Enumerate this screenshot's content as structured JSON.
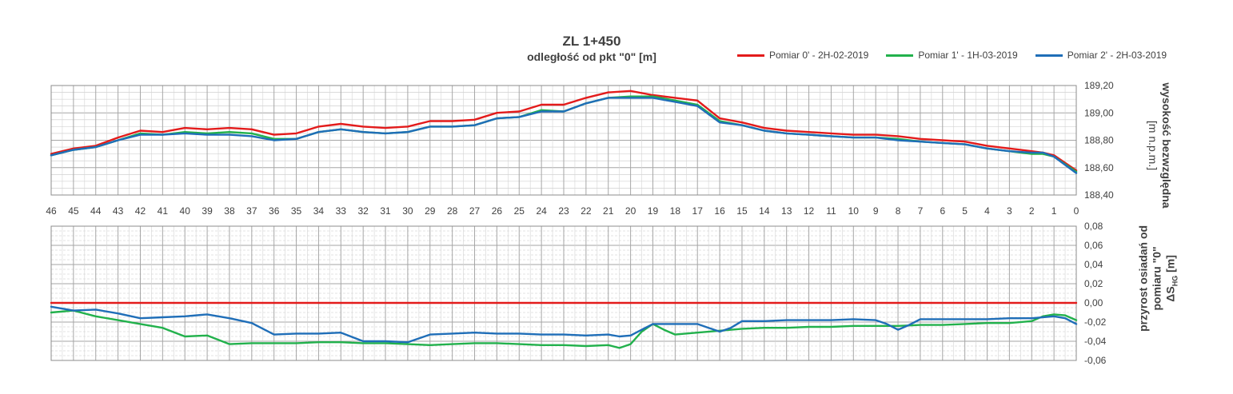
{
  "chart_data": [
    {
      "type": "line",
      "title": "ZL 1+450",
      "subtitle": "odległość od pkt \"0\" [m]",
      "ylabel_line1": "wysokość bezwzględna",
      "ylabel_line2": "[m n.p.m.]",
      "ylim": [
        188.4,
        189.2
      ],
      "yticks": [
        "189,20",
        "189,00",
        "188,80",
        "188,60",
        "188,40"
      ],
      "xlim": [
        46,
        0
      ],
      "x_ticks": [
        "46",
        "45",
        "44",
        "43",
        "42",
        "41",
        "40",
        "39",
        "38",
        "37",
        "36",
        "35",
        "34",
        "33",
        "32",
        "31",
        "30",
        "29",
        "28",
        "27",
        "26",
        "25",
        "24",
        "23",
        "22",
        "21",
        "20",
        "19",
        "18",
        "17",
        "16",
        "15",
        "14",
        "13",
        "12",
        "11",
        "10",
        "9",
        "8",
        "7",
        "6",
        "5",
        "4",
        "3",
        "2",
        "1",
        "0"
      ],
      "grid": true,
      "legend_position": "top-right",
      "series": [
        {
          "name": "Pomiar 0' - 2H-02-2019",
          "color": "#e31b1b",
          "x": [
            46,
            45,
            44,
            43,
            42,
            41,
            40,
            39,
            38,
            37,
            36,
            35,
            34,
            33,
            32,
            31,
            30,
            29,
            28,
            27,
            26,
            25,
            24,
            23,
            22,
            21,
            20,
            19,
            18,
            17,
            16,
            15,
            14,
            13,
            12,
            11,
            10,
            9,
            8,
            7,
            6,
            5,
            4,
            3,
            2,
            1.5,
            1,
            0
          ],
          "values": [
            188.7,
            188.74,
            188.76,
            188.82,
            188.87,
            188.86,
            188.89,
            188.88,
            188.89,
            188.88,
            188.84,
            188.85,
            188.9,
            188.92,
            188.9,
            188.89,
            188.9,
            188.94,
            188.94,
            188.95,
            189.0,
            189.01,
            189.06,
            189.06,
            189.11,
            189.15,
            189.16,
            189.13,
            189.11,
            189.09,
            188.96,
            188.93,
            188.89,
            188.87,
            188.86,
            188.85,
            188.84,
            188.84,
            188.83,
            188.81,
            188.8,
            188.79,
            188.76,
            188.74,
            188.72,
            188.71,
            188.69,
            188.58
          ]
        },
        {
          "name": "Pomiar 1' - 1H-03-2019",
          "color": "#22b14c",
          "x": [
            46,
            45,
            44,
            43,
            42,
            41,
            40,
            39,
            38,
            37,
            36,
            35,
            34,
            33,
            32,
            31,
            30,
            29,
            28,
            27,
            26,
            25,
            24,
            23,
            22,
            21,
            20,
            19,
            18,
            17,
            16,
            15,
            14,
            13,
            12,
            11,
            10,
            9,
            8,
            7,
            6,
            5,
            4,
            3,
            2,
            1.5,
            1,
            0
          ],
          "values": [
            188.69,
            188.73,
            188.75,
            188.8,
            188.85,
            188.84,
            188.86,
            188.85,
            188.86,
            188.85,
            188.81,
            188.81,
            188.86,
            188.88,
            188.86,
            188.85,
            188.86,
            188.9,
            188.9,
            188.91,
            188.96,
            188.97,
            189.02,
            189.01,
            189.07,
            189.11,
            189.12,
            189.12,
            189.09,
            189.06,
            188.94,
            188.91,
            188.87,
            188.85,
            188.84,
            188.83,
            188.82,
            188.82,
            188.81,
            188.79,
            188.78,
            188.77,
            188.74,
            188.72,
            188.7,
            188.7,
            188.68,
            188.57
          ]
        },
        {
          "name": "Pomiar 2' - 2H-03-2019",
          "color": "#1f6eb8",
          "x": [
            46,
            45,
            44,
            43,
            42,
            41,
            40,
            39,
            38,
            37,
            36,
            35,
            34,
            33,
            32,
            31,
            30,
            29,
            28,
            27,
            26,
            25,
            24,
            23,
            22,
            21,
            20,
            19,
            18,
            17,
            16,
            15,
            14,
            13,
            12,
            11,
            10,
            9,
            8,
            7,
            6,
            5,
            4,
            3,
            2,
            1.5,
            1,
            0
          ],
          "values": [
            188.69,
            188.73,
            188.75,
            188.8,
            188.84,
            188.84,
            188.85,
            188.84,
            188.84,
            188.83,
            188.8,
            188.81,
            188.86,
            188.88,
            188.86,
            188.85,
            188.86,
            188.9,
            188.9,
            188.91,
            188.96,
            188.97,
            189.01,
            189.01,
            189.07,
            189.11,
            189.11,
            189.11,
            189.08,
            189.05,
            188.93,
            188.91,
            188.87,
            188.85,
            188.84,
            188.83,
            188.82,
            188.82,
            188.8,
            188.79,
            188.78,
            188.77,
            188.74,
            188.72,
            188.71,
            188.71,
            188.68,
            188.56
          ]
        }
      ]
    },
    {
      "type": "line",
      "ylabel_line1": "przyrost osiadań od",
      "ylabel_line2": "pomiaru \"0\"",
      "ylabel_line3": "ΔS",
      "ylabel_sub": "HG",
      "ylabel_unit": " [m]",
      "ylim": [
        -0.06,
        0.08
      ],
      "yticks": [
        "0,08",
        "0,06",
        "0,04",
        "0,02",
        "0,00",
        "-0,02",
        "-0,04",
        "-0,06"
      ],
      "xlim": [
        46,
        0
      ],
      "grid": true,
      "series": [
        {
          "name": "Pomiar 0' - 2H-02-2019",
          "color": "#e31b1b",
          "x": [
            46,
            0
          ],
          "values": [
            0.0,
            0.0
          ]
        },
        {
          "name": "Pomiar 1' - 1H-03-2019",
          "color": "#22b14c",
          "x": [
            46,
            45,
            44,
            43,
            42,
            41,
            40,
            39,
            38,
            37,
            36,
            35,
            34,
            33,
            32,
            31,
            30,
            29,
            28,
            27,
            26,
            25,
            24,
            23,
            22,
            21,
            20.5,
            20,
            19.5,
            19,
            18.5,
            18,
            17,
            16,
            15,
            14,
            13,
            12,
            11,
            10,
            9,
            8,
            7,
            6,
            5,
            4,
            3,
            2,
            1.5,
            1,
            0.5,
            0
          ],
          "values": [
            -0.01,
            -0.008,
            -0.014,
            -0.018,
            -0.022,
            -0.026,
            -0.035,
            -0.034,
            -0.043,
            -0.042,
            -0.042,
            -0.042,
            -0.041,
            -0.041,
            -0.042,
            -0.042,
            -0.043,
            -0.044,
            -0.043,
            -0.042,
            -0.042,
            -0.043,
            -0.044,
            -0.044,
            -0.045,
            -0.044,
            -0.047,
            -0.043,
            -0.03,
            -0.022,
            -0.028,
            -0.033,
            -0.031,
            -0.029,
            -0.027,
            -0.026,
            -0.026,
            -0.025,
            -0.025,
            -0.024,
            -0.024,
            -0.024,
            -0.023,
            -0.023,
            -0.022,
            -0.021,
            -0.021,
            -0.019,
            -0.014,
            -0.012,
            -0.013,
            -0.018
          ]
        },
        {
          "name": "Pomiar 2' - 2H-03-2019",
          "color": "#1f6eb8",
          "x": [
            46,
            45,
            44,
            43,
            42,
            41,
            40,
            39,
            38,
            37,
            36,
            35,
            34,
            33,
            32,
            31,
            30,
            29,
            28,
            27,
            26,
            25,
            24,
            23,
            22,
            21,
            20.5,
            20,
            19.5,
            19,
            18,
            17,
            16.5,
            16,
            15.5,
            15,
            14,
            13,
            12,
            11,
            10,
            9,
            8.5,
            8,
            7.5,
            7,
            6,
            5,
            4,
            3,
            2,
            1,
            0.5,
            0
          ],
          "values": [
            -0.004,
            -0.008,
            -0.007,
            -0.011,
            -0.016,
            -0.015,
            -0.014,
            -0.012,
            -0.016,
            -0.021,
            -0.033,
            -0.032,
            -0.032,
            -0.031,
            -0.04,
            -0.04,
            -0.041,
            -0.033,
            -0.032,
            -0.031,
            -0.032,
            -0.032,
            -0.033,
            -0.033,
            -0.034,
            -0.033,
            -0.035,
            -0.034,
            -0.028,
            -0.022,
            -0.022,
            -0.022,
            -0.026,
            -0.03,
            -0.026,
            -0.019,
            -0.019,
            -0.018,
            -0.018,
            -0.018,
            -0.017,
            -0.018,
            -0.022,
            -0.028,
            -0.023,
            -0.017,
            -0.017,
            -0.017,
            -0.017,
            -0.016,
            -0.016,
            -0.014,
            -0.016,
            -0.022
          ]
        }
      ]
    }
  ]
}
